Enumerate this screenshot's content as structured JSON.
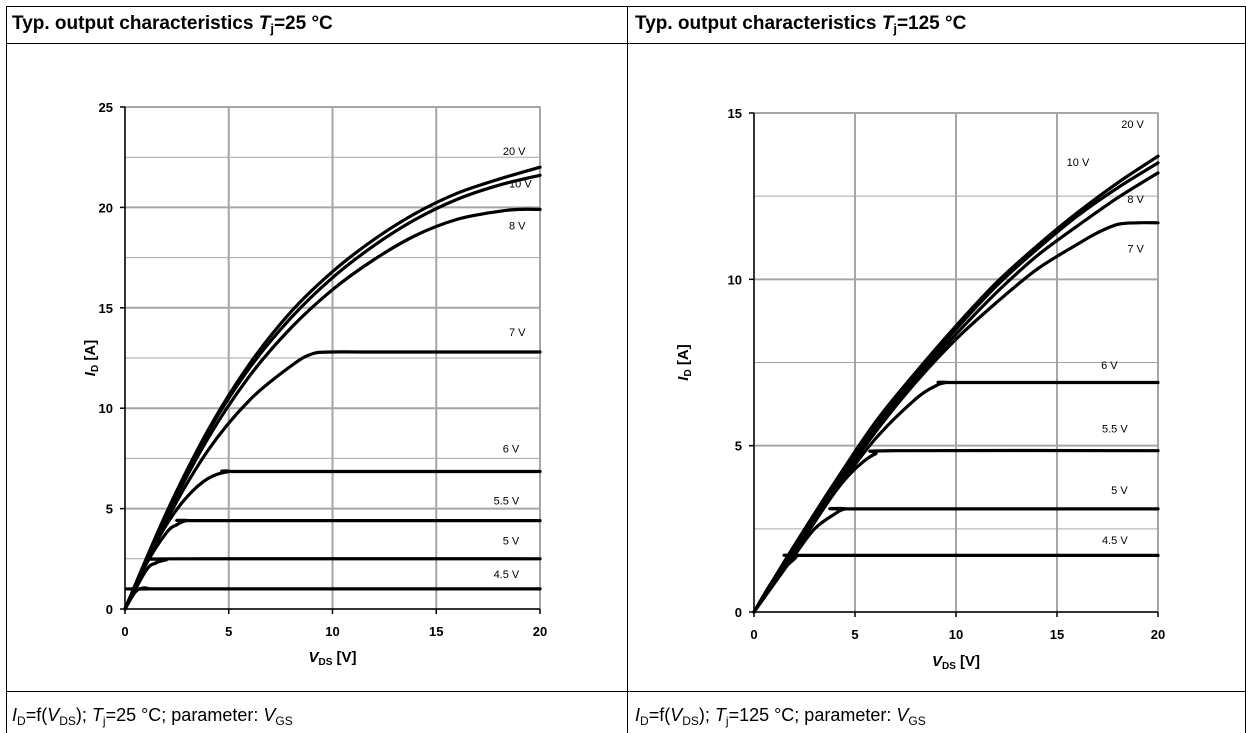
{
  "panels": [
    {
      "title_pre": "Typ. output characteristics ",
      "title_var": "T",
      "title_sub": "j",
      "title_post": "=25 °C",
      "footer": {
        "i": "I",
        "i_sub": "D",
        "eq": "=f(",
        "v": "V",
        "v_sub": "DS",
        "t_pre": "); ",
        "t": "T",
        "t_sub": "j",
        "t_post": "=25 °C; parameter: ",
        "p": "V",
        "p_sub": "GS"
      }
    },
    {
      "title_pre": "Typ. output characteristics ",
      "title_var": "T",
      "title_sub": "j",
      "title_post": "=125 °C",
      "footer": {
        "i": "I",
        "i_sub": "D",
        "eq": "=f(",
        "v": "V",
        "v_sub": "DS",
        "t_pre": "); ",
        "t": "T",
        "t_sub": "j",
        "t_post": "=125 °C; parameter: ",
        "p": "V",
        "p_sub": "GS"
      }
    }
  ],
  "chart_data": [
    {
      "type": "line",
      "title": "Typ. output characteristics Tj=25 °C",
      "xlabel": "V_DS [V]",
      "ylabel": "I_D [A]",
      "xlim": [
        0,
        20
      ],
      "ylim": [
        0,
        25
      ],
      "xticks": [
        0,
        5,
        10,
        15,
        20
      ],
      "yticks": [
        0,
        5,
        10,
        15,
        20,
        25
      ],
      "ygrid_minor": [
        2.5,
        7.5,
        12.5,
        17.5,
        22.5
      ],
      "grid": true,
      "series": [
        {
          "name": "20 V",
          "x": [
            0,
            2,
            4,
            6,
            8,
            10,
            12,
            14,
            16,
            18,
            20
          ],
          "y": [
            0,
            4.8,
            8.9,
            12.2,
            14.8,
            16.8,
            18.4,
            19.7,
            20.7,
            21.4,
            22.0
          ]
        },
        {
          "name": "10 V",
          "x": [
            0,
            2,
            4,
            6,
            8,
            10,
            12,
            14,
            16,
            18,
            20
          ],
          "y": [
            0,
            4.7,
            8.8,
            12.0,
            14.5,
            16.5,
            18.1,
            19.4,
            20.4,
            21.1,
            21.6
          ]
        },
        {
          "name": "8 V",
          "x": [
            0,
            2,
            4,
            6,
            8,
            10,
            12,
            14,
            16,
            18,
            19,
            20
          ],
          "y": [
            0,
            4.6,
            8.5,
            11.6,
            14.0,
            15.9,
            17.4,
            18.6,
            19.4,
            19.8,
            19.9,
            19.9
          ]
        },
        {
          "name": "7 V",
          "x": [
            0,
            2,
            4,
            6,
            8,
            9,
            10,
            12,
            20
          ],
          "y": [
            0,
            4.4,
            7.9,
            10.4,
            12.1,
            12.7,
            12.8,
            12.8,
            12.8
          ]
        },
        {
          "name": "6 V",
          "x": [
            0,
            1,
            2,
            3,
            4,
            5,
            6,
            20
          ],
          "y": [
            0,
            2.3,
            4.2,
            5.6,
            6.5,
            6.85,
            6.85,
            6.85
          ]
        },
        {
          "name": "5.5 V",
          "x": [
            0,
            1,
            2,
            2.5,
            3,
            4,
            20
          ],
          "y": [
            0,
            2.2,
            3.8,
            4.2,
            4.4,
            4.4,
            4.4
          ]
        },
        {
          "name": "5 V",
          "x": [
            0,
            1,
            1.5,
            2,
            2.5,
            20
          ],
          "y": [
            0,
            1.9,
            2.3,
            2.45,
            2.5,
            2.5
          ]
        },
        {
          "name": "4.5 V",
          "x": [
            0,
            0.5,
            0.9,
            1.2,
            1.5,
            20
          ],
          "y": [
            0,
            0.85,
            1.05,
            1.0,
            1.0,
            1.0
          ]
        }
      ]
    },
    {
      "type": "line",
      "title": "Typ. output characteristics Tj=125 °C",
      "xlabel": "V_DS [V]",
      "ylabel": "I_D [A]",
      "xlim": [
        0,
        20
      ],
      "ylim": [
        0,
        15
      ],
      "xticks": [
        0,
        5,
        10,
        15,
        20
      ],
      "yticks": [
        0,
        5,
        10,
        15
      ],
      "ygrid_minor": [
        2.5,
        7.5,
        12.5
      ],
      "grid": true,
      "series": [
        {
          "name": "20 V",
          "x": [
            0,
            2,
            4,
            6,
            8,
            10,
            12,
            14,
            16,
            18,
            20
          ],
          "y": [
            0,
            2.0,
            3.9,
            5.7,
            7.2,
            8.6,
            9.9,
            11.0,
            12.0,
            12.9,
            13.7
          ]
        },
        {
          "name": "10 V",
          "x": [
            0,
            2,
            4,
            6,
            8,
            10,
            12,
            14,
            16,
            18,
            20
          ],
          "y": [
            0,
            2.0,
            3.85,
            5.6,
            7.1,
            8.5,
            9.8,
            10.9,
            11.9,
            12.75,
            13.5
          ]
        },
        {
          "name": "8 V",
          "x": [
            0,
            2,
            4,
            6,
            8,
            10,
            12,
            14,
            16,
            18,
            20
          ],
          "y": [
            0,
            1.95,
            3.8,
            5.5,
            7.0,
            8.35,
            9.6,
            10.7,
            11.6,
            12.45,
            13.2
          ]
        },
        {
          "name": "7 V",
          "x": [
            0,
            2,
            4,
            6,
            8,
            10,
            12,
            14,
            16,
            17,
            18,
            19,
            20
          ],
          "y": [
            0,
            1.9,
            3.7,
            5.4,
            6.9,
            8.2,
            9.3,
            10.3,
            11.05,
            11.4,
            11.65,
            11.7,
            11.7
          ]
        },
        {
          "name": "6 V",
          "x": [
            0,
            2,
            4,
            6,
            8,
            9,
            9.5,
            10,
            20
          ],
          "y": [
            0,
            1.8,
            3.6,
            5.2,
            6.4,
            6.8,
            6.9,
            6.9,
            6.9
          ]
        },
        {
          "name": "5.5 V",
          "x": [
            0,
            2,
            3,
            4,
            5,
            6,
            7,
            20
          ],
          "y": [
            0,
            1.8,
            2.7,
            3.6,
            4.3,
            4.75,
            4.85,
            4.85
          ]
        },
        {
          "name": "5 V",
          "x": [
            0,
            2,
            3,
            4,
            4.5,
            5,
            20
          ],
          "y": [
            0,
            1.7,
            2.5,
            2.95,
            3.1,
            3.1,
            3.1
          ]
        },
        {
          "name": "4.5 V",
          "x": [
            0,
            1,
            2,
            2.2,
            3,
            20
          ],
          "y": [
            0,
            1.0,
            1.6,
            1.7,
            1.7,
            1.7
          ]
        }
      ]
    }
  ],
  "style": {
    "grid_color": "#a6a6a6",
    "line_color": "#000000"
  }
}
